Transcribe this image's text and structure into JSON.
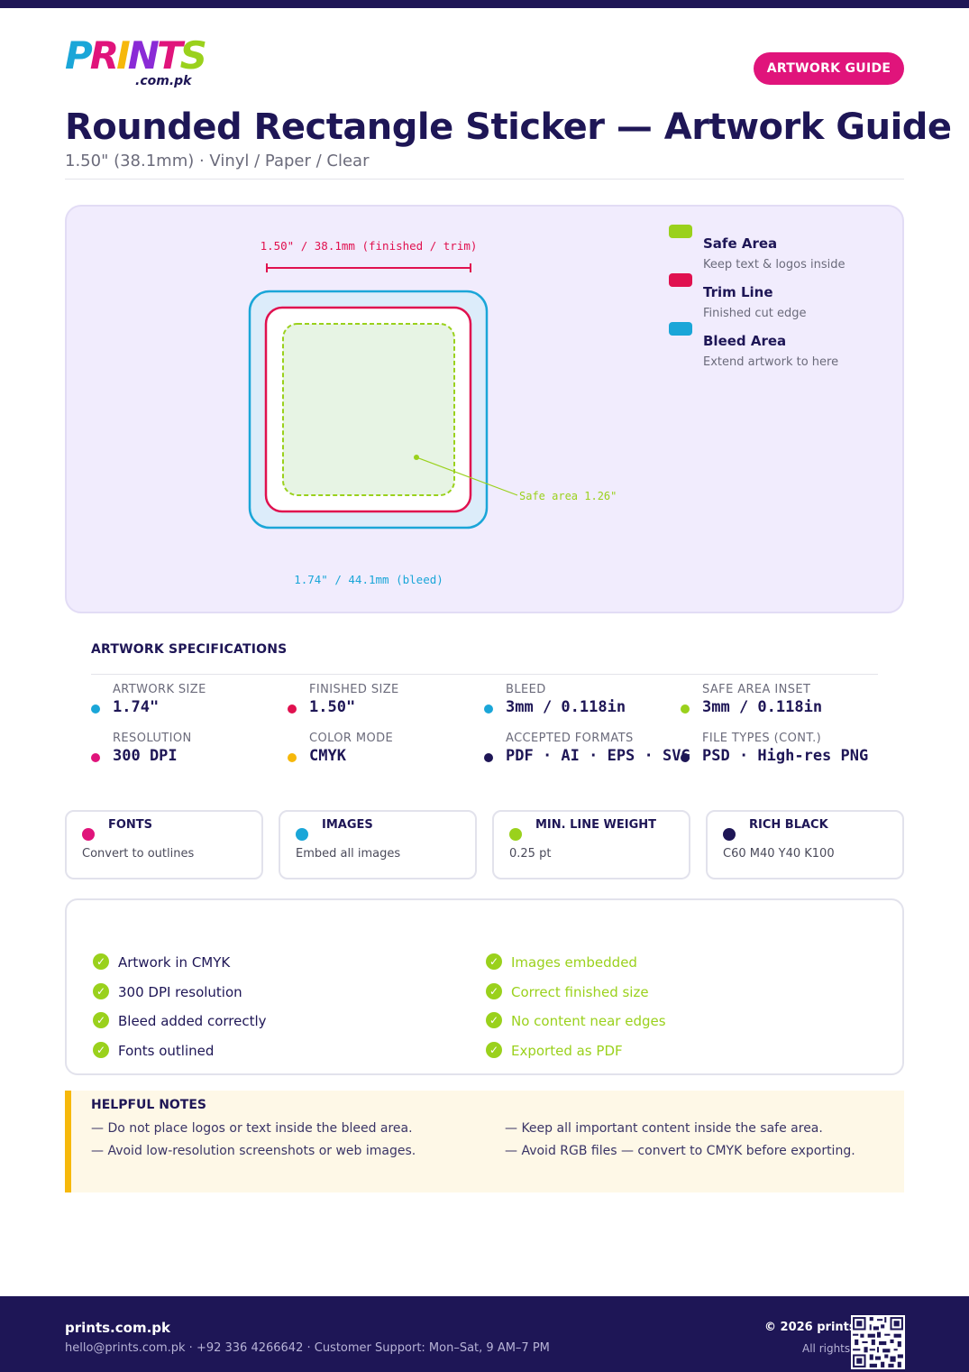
{
  "brand": {
    "logo_letters": [
      "P",
      "R",
      "I",
      "N",
      "T",
      "S"
    ],
    "logo_domain": ".com.pk"
  },
  "header": {
    "badge": "ARTWORK GUIDE",
    "title": "Rounded Rectangle Sticker — Artwork Guide",
    "subtitle": "1.50\" (38.1mm) · Vinyl / Paper / Clear"
  },
  "diagram": {
    "trim_label": "1.50\" / 38.1mm (finished / trim)",
    "bleed_label": "1.74\" / 44.1mm (bleed)",
    "safe_label": "Safe area 1.26\"",
    "legend": [
      {
        "title": "Safe Area",
        "desc": "Keep text & logos inside",
        "color": "#9ad11c"
      },
      {
        "title": "Trim Line",
        "desc": "Finished cut edge",
        "color": "#e0114f"
      },
      {
        "title": "Bleed Area",
        "desc": "Extend artwork to here",
        "color": "#1aa6d8"
      }
    ]
  },
  "specs": {
    "heading": "ARTWORK SPECIFICATIONS",
    "items": [
      {
        "key": "ARTWORK SIZE",
        "value": "1.74\"",
        "color": "#1aa6d8"
      },
      {
        "key": "FINISHED SIZE",
        "value": "1.50\"",
        "color": "#e0114f"
      },
      {
        "key": "BLEED",
        "value": "3mm / 0.118in",
        "color": "#1aa6d8"
      },
      {
        "key": "SAFE AREA INSET",
        "value": "3mm / 0.118in",
        "color": "#9ad11c"
      },
      {
        "key": "RESOLUTION",
        "value": "300 DPI",
        "color": "#e0147b"
      },
      {
        "key": "COLOR MODE",
        "value": "CMYK",
        "color": "#f6b80b"
      },
      {
        "key": "ACCEPTED FORMATS",
        "value": "PDF · AI · EPS · SVG",
        "color": "#1e1656"
      },
      {
        "key": "FILE TYPES (CONT.)",
        "value": "PSD · High-res PNG",
        "color": "#1e1656"
      }
    ]
  },
  "cards": [
    {
      "title": "FONTS",
      "desc": "Convert to outlines",
      "color": "#e0147b"
    },
    {
      "title": "IMAGES",
      "desc": "Embed all images",
      "color": "#1aa6d8"
    },
    {
      "title": "MIN. LINE WEIGHT",
      "desc": "0.25 pt",
      "color": "#9ad11c"
    },
    {
      "title": "RICH BLACK",
      "desc": "C60 M40 Y40 K100",
      "color": "#1e1656"
    }
  ],
  "checklist": {
    "left": [
      "Artwork in CMYK",
      "300 DPI resolution",
      "Bleed added correctly",
      "Fonts outlined"
    ],
    "right": [
      "Images embedded",
      "Correct finished size",
      "No content near edges",
      "Exported as PDF"
    ]
  },
  "notes": {
    "heading": "HELPFUL NOTES",
    "items": [
      "— Do not place logos or text inside the bleed area.",
      "— Keep all important content inside the safe area.",
      "— Avoid low-resolution screenshots or web images.",
      "— Avoid RGB files — convert to CMYK before exporting."
    ]
  },
  "footer": {
    "brand": "prints.com.pk",
    "contact": "hello@prints.com.pk · +92 336 4266642 · Customer Support: Mon–Sat, 9 AM–7 PM",
    "copyright": "© 2026 prints",
    "rights": "All rights"
  }
}
